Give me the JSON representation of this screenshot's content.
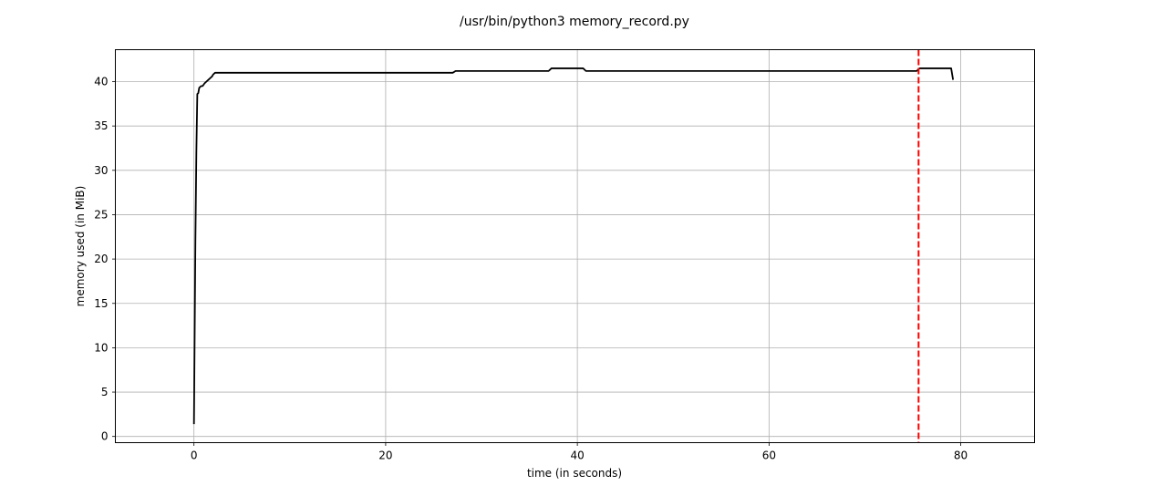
{
  "chart_data": {
    "type": "line",
    "title": "/usr/bin/python3 memory_record.py",
    "xlabel": "time (in seconds)",
    "ylabel": "memory used (in MiB)",
    "xlim": [
      -8.2,
      87.7
    ],
    "ylim": [
      -0.7,
      43.6
    ],
    "xticks": [
      0,
      20,
      40,
      60,
      80
    ],
    "yticks": [
      0,
      5,
      10,
      15,
      20,
      25,
      30,
      35,
      40
    ],
    "grid": true,
    "colors": {
      "line": "#000000",
      "marker": "#ff0000",
      "grid": "#b0b0b0"
    },
    "series": [
      {
        "x": [
          0.0,
          0.15,
          0.25,
          0.35,
          0.45,
          0.55,
          0.75,
          0.9,
          1.1,
          1.3,
          1.5,
          1.7,
          1.9,
          2.0,
          2.2,
          2.5,
          27.0,
          27.3,
          37.0,
          37.3,
          40.6,
          40.9,
          75.4,
          75.7,
          79.0,
          79.2
        ],
        "y": [
          1.4,
          22.0,
          32.0,
          38.6,
          38.7,
          39.3,
          39.5,
          39.5,
          39.8,
          40.0,
          40.2,
          40.4,
          40.6,
          40.8,
          41.0,
          41.0,
          41.0,
          41.2,
          41.2,
          41.5,
          41.5,
          41.2,
          41.2,
          41.5,
          41.5,
          40.2
        ]
      }
    ],
    "vlines": [
      {
        "x": 75.6,
        "style": "dashed"
      }
    ]
  }
}
